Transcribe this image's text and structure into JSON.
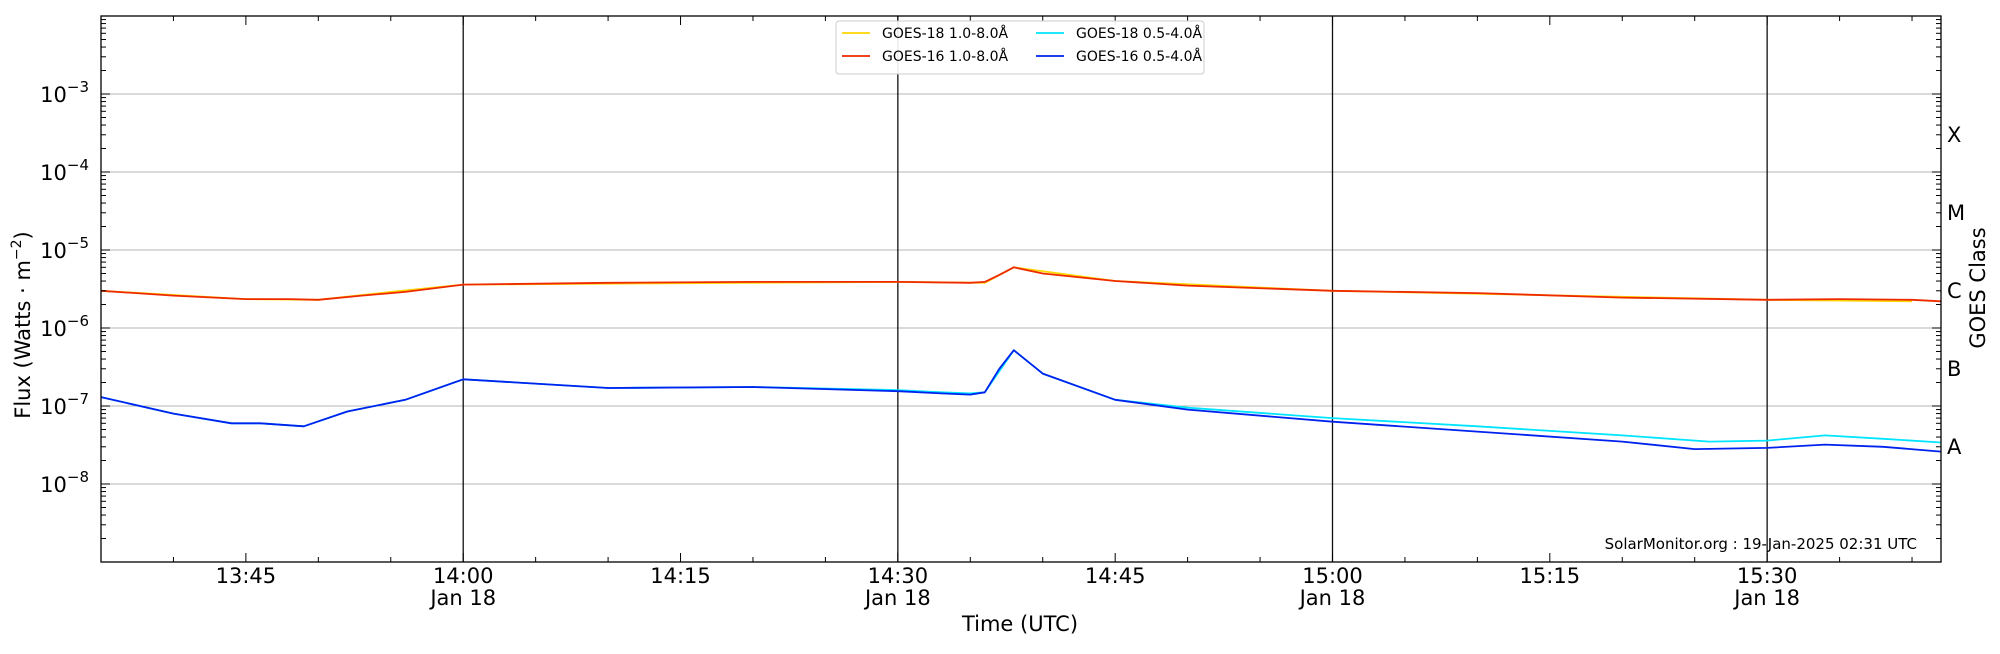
{
  "chart_data": {
    "type": "line",
    "ylabel_main": "Flux (Watts · m",
    "ylabel_sup": "−2",
    "ylabel_close": ")",
    "xlabel": "Time (UTC)",
    "right_label": "GOES Class",
    "footer": "SolarMonitor.org : 19-Jan-2025 02:31 UTC",
    "y_scale": "log",
    "ylim": [
      1e-09,
      0.01
    ],
    "xlim": [
      "13:35",
      "15:42"
    ],
    "grid": "horizontal",
    "legend_placement": "top-center",
    "y_ticks": [
      {
        "base": "10",
        "exp": "−3",
        "value": 0.001
      },
      {
        "base": "10",
        "exp": "−4",
        "value": 0.0001
      },
      {
        "base": "10",
        "exp": "−5",
        "value": 1e-05
      },
      {
        "base": "10",
        "exp": "−6",
        "value": 1e-06
      },
      {
        "base": "10",
        "exp": "−7",
        "value": 1e-07
      },
      {
        "base": "10",
        "exp": "−8",
        "value": 1e-08
      }
    ],
    "x_ticks": [
      {
        "time": "13:45",
        "label": "13:45",
        "sub": ""
      },
      {
        "time": "14:00",
        "label": "14:00",
        "sub": "Jan 18"
      },
      {
        "time": "14:15",
        "label": "14:15",
        "sub": ""
      },
      {
        "time": "14:30",
        "label": "14:30",
        "sub": "Jan 18"
      },
      {
        "time": "14:45",
        "label": "14:45",
        "sub": ""
      },
      {
        "time": "15:00",
        "label": "15:00",
        "sub": "Jan 18"
      },
      {
        "time": "15:15",
        "label": "15:15",
        "sub": ""
      },
      {
        "time": "15:30",
        "label": "15:30",
        "sub": "Jan 18"
      }
    ],
    "vlines": [
      "14:00",
      "14:30",
      "15:00",
      "15:30"
    ],
    "goes_classes": [
      {
        "label": "X",
        "value": 0.0003
      },
      {
        "label": "M",
        "value": 3e-05
      },
      {
        "label": "C",
        "value": 3e-06
      },
      {
        "label": "B",
        "value": 3e-07
      },
      {
        "label": "A",
        "value": 3e-08
      }
    ],
    "series": [
      {
        "name": "GOES-18 1.0-8.0Å",
        "color": "#ffd700",
        "x": [
          "13:35",
          "13:45",
          "13:50",
          "13:55",
          "14:00",
          "14:30",
          "14:36",
          "14:38",
          "14:45",
          "15:00",
          "15:30",
          "15:40"
        ],
        "values": [
          3e-06,
          2.35e-06,
          2.3e-06,
          2.9e-06,
          3.6e-06,
          3.9e-06,
          3.8e-06,
          6e-06,
          4e-06,
          3e-06,
          2.3e-06,
          2.2e-06
        ]
      },
      {
        "name": "GOES-16 1.0-8.0Å",
        "color": "#ee2a00",
        "x": [
          "13:35",
          "13:40",
          "13:45",
          "13:48",
          "13:50",
          "13:53",
          "13:56",
          "14:00",
          "14:10",
          "14:20",
          "14:30",
          "14:35",
          "14:36",
          "14:37",
          "14:38",
          "14:40",
          "14:45",
          "14:50",
          "15:00",
          "15:10",
          "15:20",
          "15:30",
          "15:35",
          "15:40",
          "15:42"
        ],
        "values": [
          3e-06,
          2.6e-06,
          2.35e-06,
          2.35e-06,
          2.3e-06,
          2.6e-06,
          2.9e-06,
          3.6e-06,
          3.8e-06,
          3.9e-06,
          3.9e-06,
          3.8e-06,
          3.9e-06,
          4.8e-06,
          6e-06,
          5e-06,
          4e-06,
          3.5e-06,
          3e-06,
          2.8e-06,
          2.45e-06,
          2.3e-06,
          2.35e-06,
          2.3e-06,
          2.2e-06
        ]
      },
      {
        "name": "GOES-18 0.5-4.0Å",
        "color": "#00e5ff",
        "x": [
          "13:35",
          "13:40",
          "13:44",
          "13:46",
          "13:49",
          "13:52",
          "13:56",
          "14:00",
          "14:10",
          "14:20",
          "14:30",
          "14:33",
          "14:35",
          "14:36",
          "14:38",
          "14:40",
          "14:45",
          "14:50",
          "15:00",
          "15:10",
          "15:20",
          "15:26",
          "15:30",
          "15:34",
          "15:38",
          "15:42"
        ],
        "values": [
          1.3e-07,
          8e-08,
          6e-08,
          6e-08,
          5.5e-08,
          8.5e-08,
          1.2e-07,
          2.2e-07,
          1.7e-07,
          1.75e-07,
          1.6e-07,
          1.5e-07,
          1.45e-07,
          1.5e-07,
          5.2e-07,
          2.6e-07,
          1.2e-07,
          9.5e-08,
          7e-08,
          5.5e-08,
          4.2e-08,
          3.5e-08,
          3.6e-08,
          4.2e-08,
          3.8e-08,
          3.4e-08
        ]
      },
      {
        "name": "GOES-16 0.5-4.0Å",
        "color": "#0022ee",
        "x": [
          "13:35",
          "13:40",
          "13:44",
          "13:46",
          "13:49",
          "13:52",
          "13:56",
          "14:00",
          "14:10",
          "14:20",
          "14:30",
          "14:33",
          "14:35",
          "14:36",
          "14:37",
          "14:38",
          "14:40",
          "14:45",
          "14:50",
          "15:00",
          "15:10",
          "15:20",
          "15:25",
          "15:30",
          "15:34",
          "15:38",
          "15:42"
        ],
        "values": [
          1.3e-07,
          8e-08,
          6e-08,
          6e-08,
          5.5e-08,
          8.5e-08,
          1.2e-07,
          2.2e-07,
          1.7e-07,
          1.75e-07,
          1.55e-07,
          1.45e-07,
          1.4e-07,
          1.5e-07,
          3e-07,
          5.2e-07,
          2.6e-07,
          1.2e-07,
          9e-08,
          6.3e-08,
          4.7e-08,
          3.5e-08,
          2.8e-08,
          2.9e-08,
          3.2e-08,
          3e-08,
          2.6e-08
        ]
      }
    ]
  }
}
